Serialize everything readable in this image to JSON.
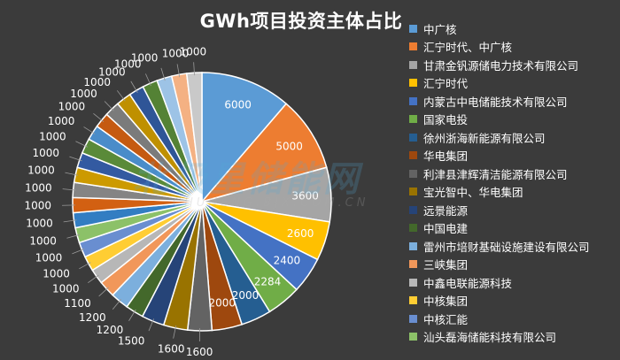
{
  "chart_data": {
    "type": "pie",
    "title": "GWh项目投资主体占比",
    "slices": [
      {
        "label": "中广核",
        "value": 6000,
        "color": "#5b9bd5"
      },
      {
        "label": "汇宁时代、中广核",
        "value": 5000,
        "color": "#ed7d31"
      },
      {
        "label": "甘肃金钒源储电力技术有限公司",
        "value": 3600,
        "color": "#a5a5a5"
      },
      {
        "label": "汇宁时代",
        "value": 2600,
        "color": "#ffc000"
      },
      {
        "label": "内蒙古中电储能技术有限公司",
        "value": 2400,
        "color": "#4472c4"
      },
      {
        "label": "国家电投",
        "value": 2284,
        "color": "#70ad47"
      },
      {
        "label": "徐州浙海新能源有限公司",
        "value": 2000,
        "color": "#255e91"
      },
      {
        "label": "华电集团",
        "value": 2000,
        "color": "#9e480e"
      },
      {
        "label": "利津县津辉清洁能源有限公司",
        "value": 1600,
        "color": "#636363"
      },
      {
        "label": "宝光智中、华电集团",
        "value": 1600,
        "color": "#997300"
      },
      {
        "label": "远景能源",
        "value": 1500,
        "color": "#264478"
      },
      {
        "label": "中国电建",
        "value": 1200,
        "color": "#43682b"
      },
      {
        "label": "雷州市培财基础设施建设有限公司",
        "value": 1200,
        "color": "#7cafdd"
      },
      {
        "label": "三峡集团",
        "value": 1100,
        "color": "#f1975a"
      },
      {
        "label": "中鑫电联能源科技",
        "value": 1000,
        "color": "#b7b7b7"
      },
      {
        "label": "中核集团",
        "value": 1000,
        "color": "#ffcd33"
      },
      {
        "label": "中核汇能",
        "value": 1000,
        "color": "#698ed0"
      },
      {
        "label": "汕头磊海储能科技有限公司",
        "value": 1000,
        "color": "#8cc168"
      },
      {
        "label": "",
        "value": 1000,
        "color": "#327dc2"
      },
      {
        "label": "",
        "value": 1000,
        "color": "#d26012"
      },
      {
        "label": "",
        "value": 1000,
        "color": "#848484"
      },
      {
        "label": "",
        "value": 1000,
        "color": "#cc9a00"
      },
      {
        "label": "",
        "value": 1000,
        "color": "#335aa1"
      },
      {
        "label": "",
        "value": 1000,
        "color": "#5a8a39"
      },
      {
        "label": "",
        "value": 1000,
        "color": "#4a8cc9"
      },
      {
        "label": "",
        "value": 1000,
        "color": "#c55a11"
      },
      {
        "label": "",
        "value": 1000,
        "color": "#7b7b7b"
      },
      {
        "label": "",
        "value": 1000,
        "color": "#bf9000"
      },
      {
        "label": "",
        "value": 1000,
        "color": "#2f5597"
      },
      {
        "label": "",
        "value": 1000,
        "color": "#548235"
      },
      {
        "label": "",
        "value": 1000,
        "color": "#9dc3e6"
      },
      {
        "label": "",
        "value": 1000,
        "color": "#f4b183"
      },
      {
        "label": "",
        "value": 1000,
        "color": "#c9c9c9"
      }
    ],
    "legend_position": "right"
  },
  "watermark": {
    "main": "北极星储能网",
    "sub": "CHUNENG.BJX.COM.CN"
  }
}
